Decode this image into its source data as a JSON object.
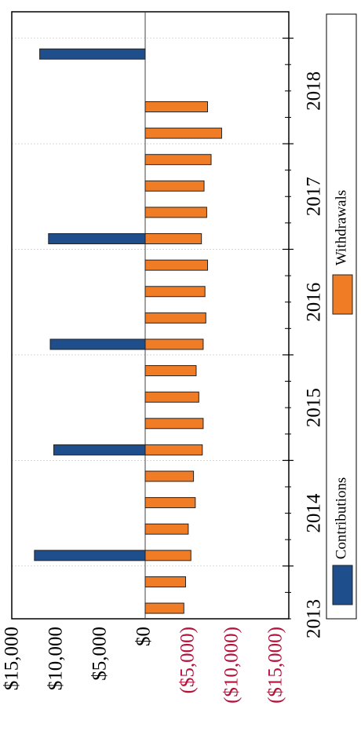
{
  "chart_data": {
    "type": "bar",
    "orientation": "rotated-90",
    "x_ticks": [
      "2013",
      "2014",
      "2015",
      "2016",
      "2017",
      "2018"
    ],
    "y_ticks": [
      {
        "value": 15000,
        "label": "$15,000"
      },
      {
        "value": 10000,
        "label": "$10,000"
      },
      {
        "value": 5000,
        "label": "$5,000"
      },
      {
        "value": 0,
        "label": "$0"
      },
      {
        "value": -5000,
        "label": "($5,000)"
      },
      {
        "value": -10000,
        "label": "($10,000)"
      },
      {
        "value": -15000,
        "label": "($15,000)"
      }
    ],
    "ylim": [
      -15000,
      15000
    ],
    "grid": true,
    "legend_position": "right",
    "series": [
      {
        "name": "Contributions",
        "color": "#1f4e8c",
        "points": [
          {
            "x": 2013.1,
            "value": 12600
          },
          {
            "x": 2014.1,
            "value": 10400
          },
          {
            "x": 2015.1,
            "value": 10800
          },
          {
            "x": 2016.1,
            "value": 11000
          },
          {
            "x": 2017.85,
            "value": 12000
          }
        ]
      },
      {
        "name": "Withdrawals",
        "color": "#f07d26",
        "points": [
          {
            "x": 2012.6,
            "value": -4400
          },
          {
            "x": 2012.85,
            "value": -4600
          },
          {
            "x": 2013.1,
            "value": -5200
          },
          {
            "x": 2013.35,
            "value": -4900
          },
          {
            "x": 2013.6,
            "value": -5700
          },
          {
            "x": 2013.85,
            "value": -5500
          },
          {
            "x": 2014.1,
            "value": -6500
          },
          {
            "x": 2014.35,
            "value": -6600
          },
          {
            "x": 2014.6,
            "value": -6100
          },
          {
            "x": 2014.85,
            "value": -5800
          },
          {
            "x": 2015.1,
            "value": -6600
          },
          {
            "x": 2015.35,
            "value": -6900
          },
          {
            "x": 2015.6,
            "value": -6800
          },
          {
            "x": 2015.85,
            "value": -7100
          },
          {
            "x": 2016.1,
            "value": -6400
          },
          {
            "x": 2016.35,
            "value": -7000
          },
          {
            "x": 2016.6,
            "value": -6700
          },
          {
            "x": 2016.85,
            "value": -7500
          },
          {
            "x": 2017.1,
            "value": -8700
          },
          {
            "x": 2017.35,
            "value": -7100
          }
        ]
      }
    ]
  }
}
